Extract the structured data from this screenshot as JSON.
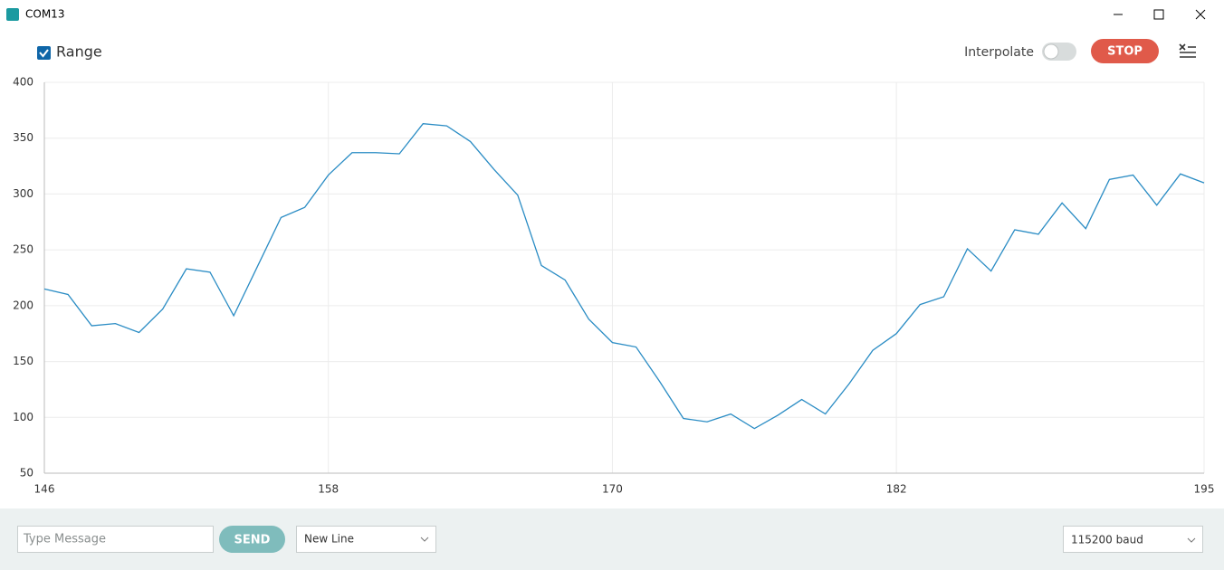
{
  "window": {
    "title": "COM13"
  },
  "toolbar": {
    "range_label": "Range",
    "interpolate_label": "Interpolate",
    "stop_button": "STOP"
  },
  "footer": {
    "message_placeholder": "Type Message",
    "send_button": "SEND",
    "line_ending": "New Line",
    "baud_rate": "115200 baud"
  },
  "chart_data": {
    "type": "line",
    "color": "#2a8cc4",
    "grid": true,
    "x": [
      146,
      147,
      148,
      149,
      150,
      151,
      152,
      153,
      154,
      155,
      156,
      157,
      158,
      159,
      160,
      161,
      162,
      163,
      164,
      165,
      166,
      167,
      168,
      169,
      170,
      171,
      172,
      173,
      174,
      175,
      176,
      177,
      178,
      179,
      180,
      181,
      182,
      183,
      184,
      185,
      186,
      187,
      188,
      189,
      190,
      191,
      192,
      193,
      194,
      195
    ],
    "values": [
      215,
      210,
      182,
      184,
      176,
      197,
      233,
      230,
      191,
      235,
      279,
      288,
      317,
      337,
      337,
      336,
      363,
      361,
      347,
      322,
      299,
      236,
      223,
      188,
      167,
      163,
      132,
      99,
      96,
      103,
      90,
      102,
      116,
      103,
      130,
      160,
      175,
      201,
      208,
      251,
      231,
      268,
      264,
      292,
      269,
      313,
      317,
      290,
      318,
      310
    ],
    "xlim": [
      146,
      195
    ],
    "xticks": [
      146,
      158,
      170,
      182,
      195
    ],
    "ylim": [
      50,
      400
    ],
    "yticks": [
      50,
      100,
      150,
      200,
      250,
      300,
      350,
      400
    ]
  }
}
